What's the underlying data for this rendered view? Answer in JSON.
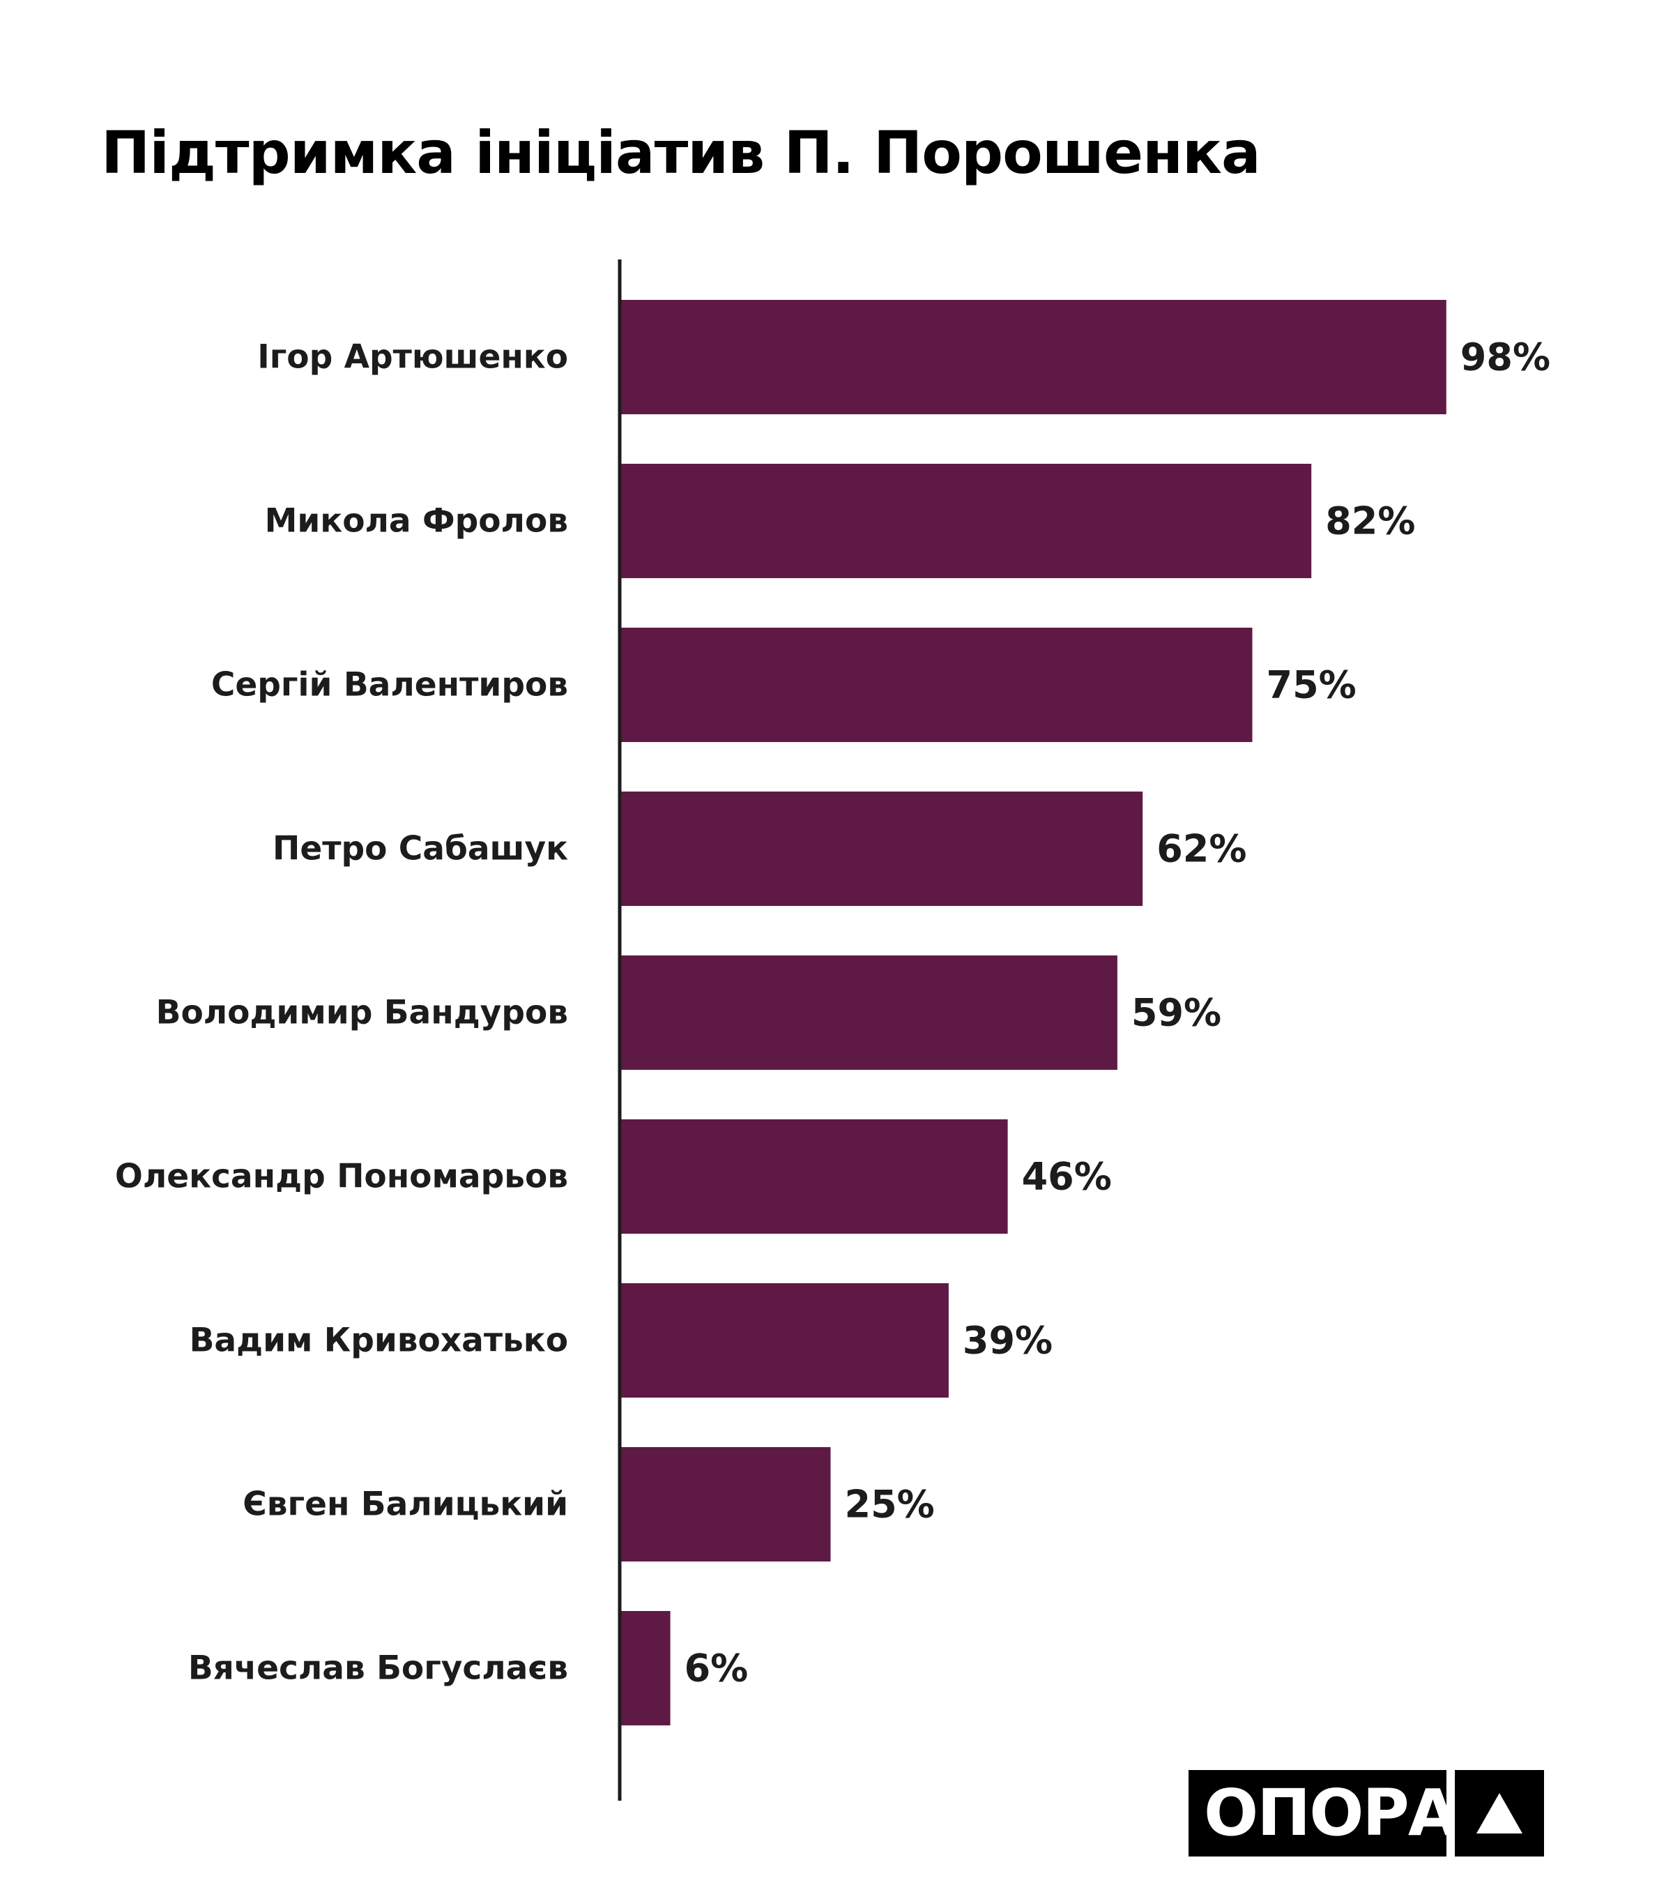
{
  "title": "Підтримка ініціатив П. Порошенка",
  "colors": {
    "bar": "#5e1a44",
    "axis": "#1c1c1c",
    "text": "#1c1c1c",
    "logo_bg": "#000000",
    "logo_fg": "#ffffff"
  },
  "logo": {
    "text": "ОПОРА",
    "mark_icon": "triangle-icon"
  },
  "chart_data": {
    "type": "bar",
    "orientation": "horizontal",
    "title": "Підтримка ініціатив П. Порошенка",
    "xlabel": "",
    "ylabel": "",
    "xlim": [
      0,
      100
    ],
    "unit": "%",
    "grid": false,
    "legend": "none",
    "categories": [
      "Ігор Артюшенко",
      "Микола Фролов",
      "Сергій Валентиров",
      "Петро Сабашук",
      "Володимир Бандуров",
      "Олександр Пономарьов",
      "Вадим Кривохатько",
      "Євген Балицький",
      "Вячеслав Богуслаєв"
    ],
    "values": [
      98,
      82,
      75,
      62,
      59,
      46,
      39,
      25,
      6
    ],
    "value_labels": [
      "98%",
      "82%",
      "75%",
      "62%",
      "59%",
      "46%",
      "39%",
      "25%",
      "6%"
    ]
  }
}
